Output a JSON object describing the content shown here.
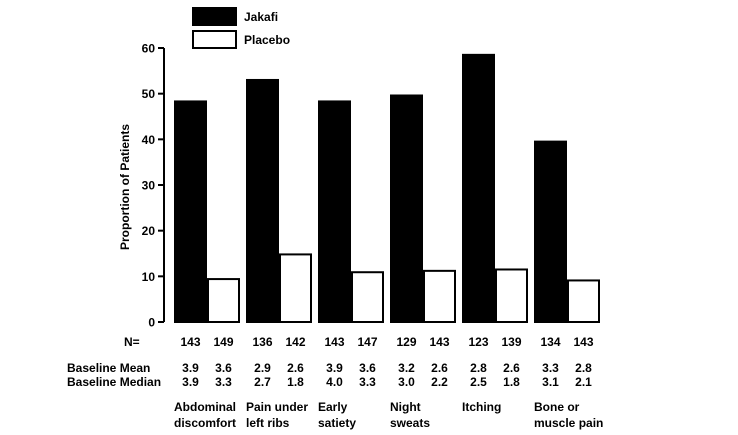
{
  "chart_data": {
    "type": "bar",
    "title": "",
    "xlabel": "",
    "ylabel": "Proportion of Patients",
    "ylim": [
      0,
      60
    ],
    "yticks": [
      "0",
      "10",
      "20",
      "30",
      "40",
      "50",
      "60"
    ],
    "legend": {
      "placement": "top-left"
    },
    "categories": [
      "Abdominal discomfort",
      "Pain under left ribs",
      "Early satiety",
      "Night sweats",
      "Itching",
      "Bone or muscle pain"
    ],
    "category_label_lines": [
      [
        "Abdominal",
        "discomfort"
      ],
      [
        "Pain under",
        "left ribs"
      ],
      [
        "Early",
        "satiety"
      ],
      [
        "Night",
        "sweats"
      ],
      [
        "Itching",
        ""
      ],
      [
        "Bone or",
        "muscle pain"
      ]
    ],
    "series": [
      {
        "name": "Jakafi",
        "fill": "#000000",
        "values": [
          48.3,
          53.0,
          48.3,
          49.6,
          58.5,
          39.5
        ]
      },
      {
        "name": "Placebo",
        "fill": "#ffffff",
        "values": [
          9.4,
          14.8,
          10.9,
          11.2,
          11.5,
          9.1
        ]
      }
    ],
    "n_label": "N=",
    "n_values": [
      [
        "143",
        "149"
      ],
      [
        "136",
        "142"
      ],
      [
        "143",
        "147"
      ],
      [
        "129",
        "143"
      ],
      [
        "123",
        "139"
      ],
      [
        "134",
        "143"
      ]
    ],
    "baseline_mean_label": "Baseline Mean",
    "baseline_mean": [
      [
        "3.9",
        "3.6"
      ],
      [
        "2.9",
        "2.6"
      ],
      [
        "3.9",
        "3.6"
      ],
      [
        "3.2",
        "2.6"
      ],
      [
        "2.8",
        "2.6"
      ],
      [
        "3.3",
        "2.8"
      ]
    ],
    "baseline_median_label": "Baseline Median",
    "baseline_median": [
      [
        "3.9",
        "3.3"
      ],
      [
        "2.7",
        "1.8"
      ],
      [
        "4.0",
        "3.3"
      ],
      [
        "3.0",
        "2.2"
      ],
      [
        "2.5",
        "1.8"
      ],
      [
        "3.1",
        "2.1"
      ]
    ]
  }
}
